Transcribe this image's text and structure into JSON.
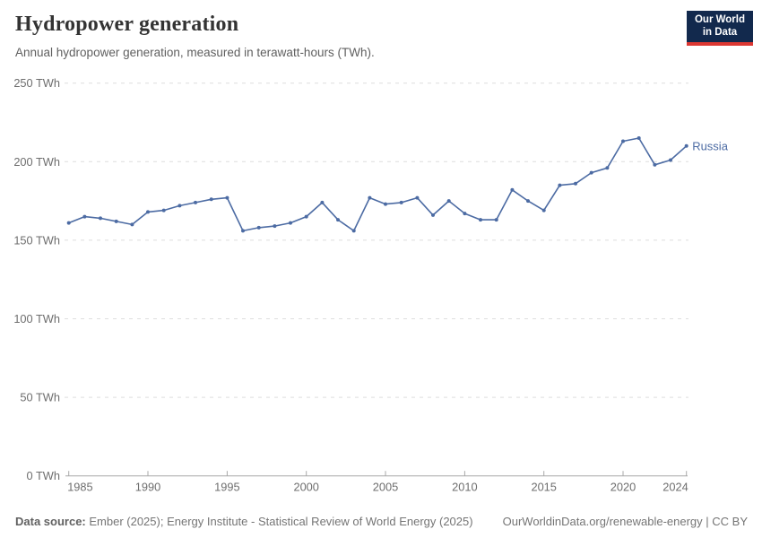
{
  "header": {
    "title": "Hydropower generation",
    "subtitle": "Annual hydropower generation, measured in terawatt-hours (TWh).",
    "logo": {
      "line1": "Our World",
      "line2": "in Data",
      "bg_color": "#12294d",
      "accent_color": "#dc3732"
    }
  },
  "chart_data": {
    "type": "line",
    "title": "Hydropower generation",
    "xlabel": "",
    "ylabel": "TWh",
    "xlim": [
      1985,
      2024
    ],
    "ylim": [
      0,
      250
    ],
    "x_ticks": [
      1985,
      1990,
      1995,
      2000,
      2005,
      2010,
      2015,
      2020,
      2024
    ],
    "y_ticks": [
      0,
      50,
      100,
      150,
      200,
      250
    ],
    "y_tick_suffix": " TWh",
    "grid": true,
    "legend_position": "end-of-line",
    "series": [
      {
        "name": "Russia",
        "color": "#4c6ba3",
        "x": [
          1985,
          1986,
          1987,
          1988,
          1989,
          1990,
          1991,
          1992,
          1993,
          1994,
          1995,
          1996,
          1997,
          1998,
          1999,
          2000,
          2001,
          2002,
          2003,
          2004,
          2005,
          2006,
          2007,
          2008,
          2009,
          2010,
          2011,
          2012,
          2013,
          2014,
          2015,
          2016,
          2017,
          2018,
          2019,
          2020,
          2021,
          2022,
          2023,
          2024
        ],
        "values": [
          161,
          165,
          164,
          162,
          160,
          168,
          169,
          172,
          174,
          176,
          177,
          156,
          158,
          159,
          161,
          165,
          174,
          163,
          156,
          177,
          173,
          174,
          177,
          166,
          175,
          167,
          163,
          163,
          182,
          175,
          169,
          185,
          186,
          193,
          196,
          213,
          215,
          198,
          201,
          210
        ]
      }
    ],
    "style": {
      "grid_color": "#dedede",
      "axis_color": "#a8a8a8",
      "tick_label_color": "#6e6e6e"
    }
  },
  "footer": {
    "source_label": "Data source:",
    "source_text": " Ember (2025); Energy Institute - Statistical Review of World Energy (2025)",
    "link_text": "OurWorldinData.org/renewable-energy | CC BY"
  }
}
